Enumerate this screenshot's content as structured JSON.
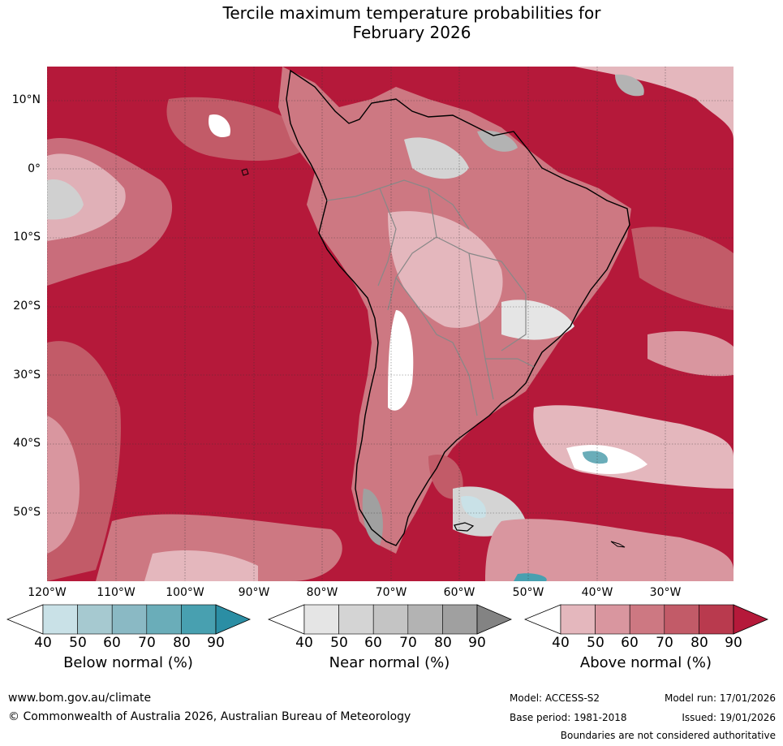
{
  "title": {
    "line1": "Tercile maximum temperature probabilities for",
    "line2": "February 2026"
  },
  "map": {
    "lat_labels": [
      "10°N",
      "0°",
      "10°S",
      "20°S",
      "30°S",
      "40°S",
      "50°S"
    ],
    "lon_labels": [
      "120°W",
      "110°W",
      "100°W",
      "90°W",
      "80°W",
      "70°W",
      "60°W",
      "50°W",
      "40°W",
      "30°W"
    ],
    "ocean_color": "#b5193a",
    "gridlines": true
  },
  "colorbars": [
    {
      "title": "Below normal (%)",
      "ticks": [
        "40",
        "50",
        "60",
        "70",
        "80",
        "90"
      ],
      "colors": [
        "#ffffff",
        "#c9e1e7",
        "#a6c9d0",
        "#8ab9c4",
        "#6aadb9",
        "#48a0b0",
        "#2b8ea4"
      ]
    },
    {
      "title": "Near normal (%)",
      "ticks": [
        "40",
        "50",
        "60",
        "70",
        "80",
        "90"
      ],
      "colors": [
        "#ffffff",
        "#e5e5e5",
        "#d4d4d4",
        "#c4c4c4",
        "#b3b3b3",
        "#a0a0a0",
        "#838383"
      ]
    },
    {
      "title": "Above normal (%)",
      "ticks": [
        "40",
        "50",
        "60",
        "70",
        "80",
        "90"
      ],
      "colors": [
        "#ffffff",
        "#e4b7bd",
        "#d9969f",
        "#cd7882",
        "#c25b68",
        "#b93a4e",
        "#b5193a"
      ]
    }
  ],
  "footer": {
    "website": "www.bom.gov.au/climate",
    "copyright": "© Commonwealth of Australia 2026, Australian Bureau of Meteorology",
    "model": "Model: ACCESS-S2",
    "model_run": "Model run: 17/01/2026",
    "base_period": "Base period: 1981-2018",
    "issued": "Issued: 19/01/2026",
    "disclaimer": "Boundaries are not considered authoritative"
  }
}
